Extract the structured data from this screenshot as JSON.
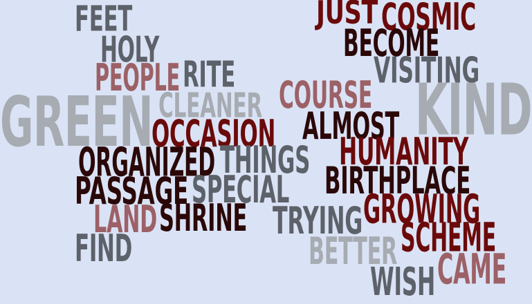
{
  "background": "#dae3f5",
  "palette": {
    "slate": "#5d6169",
    "light_gray": "#a7abb2",
    "dark_red": "#6b0a0a",
    "near_black": "#2b0808",
    "dusty_rose": "#9c6166"
  },
  "words": [
    {
      "text": "FEET",
      "color": "#5d6169"
    },
    {
      "text": "JUST",
      "color": "#6b0a0a"
    },
    {
      "text": "COSMIC",
      "color": "#6b0a0a"
    },
    {
      "text": "HOLY",
      "color": "#5d6169"
    },
    {
      "text": "BECOME",
      "color": "#2b0808"
    },
    {
      "text": "PEOPLE",
      "color": "#9c6166"
    },
    {
      "text": "RITE",
      "color": "#5d6169"
    },
    {
      "text": "VISITING",
      "color": "#5d6169"
    },
    {
      "text": "COURSE",
      "color": "#9c6166"
    },
    {
      "text": "GREEN",
      "color": "#a7abb2"
    },
    {
      "text": "CLEANER",
      "color": "#a7abb2"
    },
    {
      "text": "KIND",
      "color": "#a7abb2"
    },
    {
      "text": "OCCASION",
      "color": "#6b0a0a"
    },
    {
      "text": "ALMOST",
      "color": "#2b0808"
    },
    {
      "text": "HUMANITY",
      "color": "#6b0a0a"
    },
    {
      "text": "ORGANIZED",
      "color": "#2b0808"
    },
    {
      "text": "THINGS",
      "color": "#5d6169"
    },
    {
      "text": "BIRTHPLACE",
      "color": "#2b0808"
    },
    {
      "text": "PASSAGE",
      "color": "#2b0808"
    },
    {
      "text": "SPECIAL",
      "color": "#5d6169"
    },
    {
      "text": "GROWING",
      "color": "#6b0a0a"
    },
    {
      "text": "LAND",
      "color": "#9c6166"
    },
    {
      "text": "SHRINE",
      "color": "#2b0808"
    },
    {
      "text": "TRYING",
      "color": "#5d6169"
    },
    {
      "text": "SCHEME",
      "color": "#6b0a0a"
    },
    {
      "text": "FIND",
      "color": "#5d6169"
    },
    {
      "text": "BETTER",
      "color": "#a7abb2"
    },
    {
      "text": "CAME",
      "color": "#9c6166"
    },
    {
      "text": "WISH",
      "color": "#5d6169"
    }
  ]
}
